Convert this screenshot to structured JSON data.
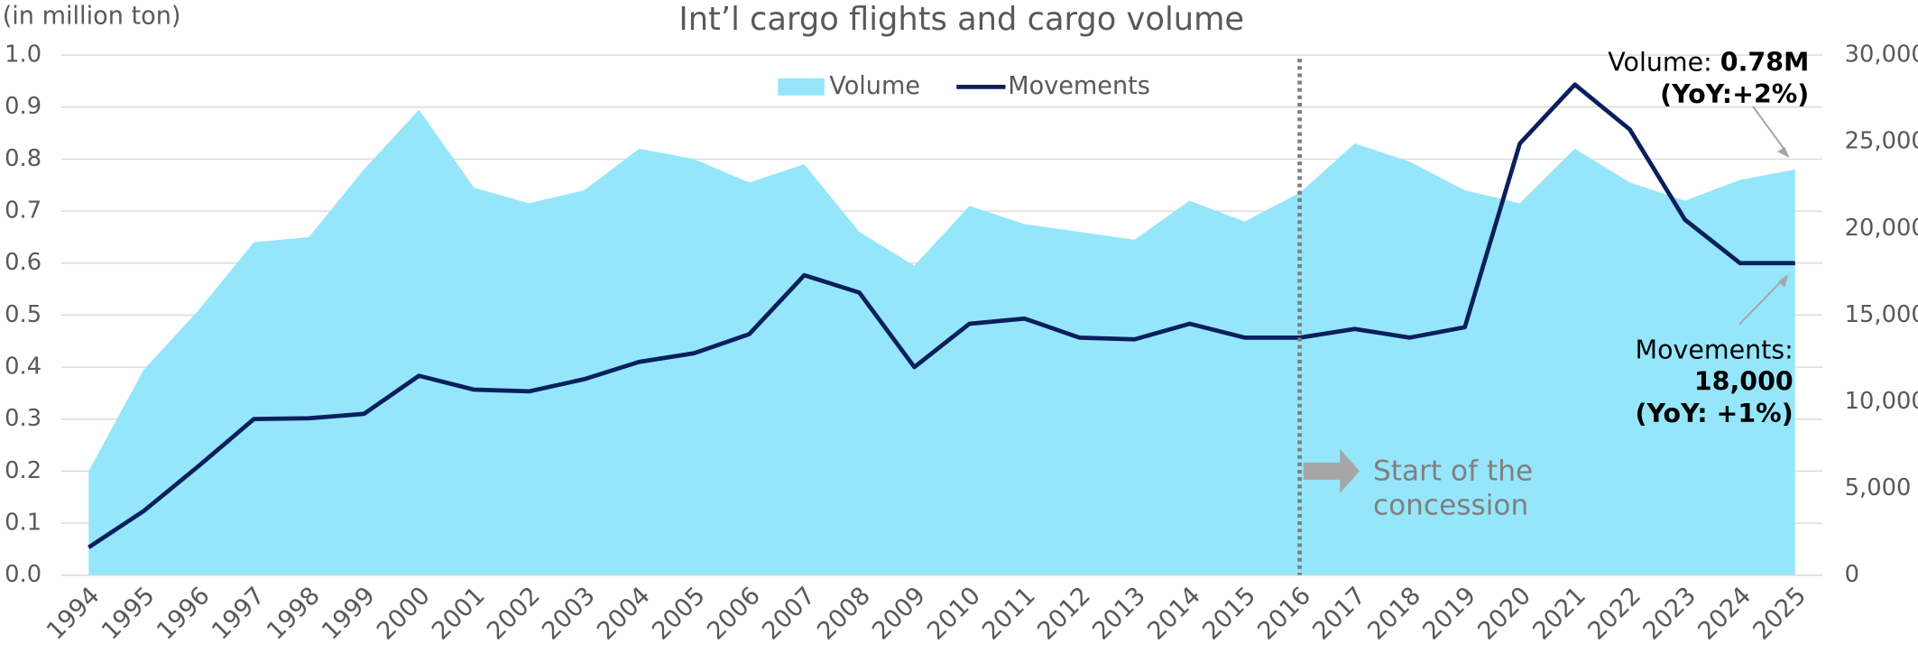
{
  "chart_data": {
    "type": "area-line",
    "title": "Int’l cargo flights and cargo volume",
    "y_label": "(in million ton)",
    "categories": [
      "1994",
      "1995",
      "1996",
      "1997",
      "1998",
      "1999",
      "2000",
      "2001",
      "2002",
      "2003",
      "2004",
      "2005",
      "2006",
      "2007",
      "2008",
      "2009",
      "2010",
      "2011",
      "2012",
      "2013",
      "2014",
      "2015",
      "2016",
      "2017",
      "2018",
      "2019",
      "2020",
      "2021",
      "2022",
      "2023",
      "2024",
      "2025"
    ],
    "series": [
      {
        "name": "Volume",
        "kind": "area",
        "color": "#95e6fb",
        "axis": "y",
        "values": [
          0.2,
          0.395,
          0.51,
          0.64,
          0.65,
          0.78,
          0.895,
          0.745,
          0.715,
          0.74,
          0.82,
          0.8,
          0.755,
          0.79,
          0.66,
          0.595,
          0.71,
          0.675,
          0.66,
          0.645,
          0.72,
          0.68,
          0.735,
          0.83,
          0.795,
          0.74,
          0.715,
          0.82,
          0.755,
          0.72,
          0.76,
          0.78
        ]
      },
      {
        "name": "Movements",
        "kind": "line",
        "color": "#0a1f5c",
        "axis": "y2",
        "values": [
          1600,
          3700,
          6300,
          9000,
          9050,
          9300,
          11500,
          10700,
          10600,
          11300,
          12300,
          12800,
          13900,
          17300,
          16300,
          12000,
          14500,
          14800,
          13700,
          13600,
          14500,
          13700,
          13700,
          14200,
          13700,
          14300,
          24900,
          28300,
          25700,
          20500,
          18000,
          18000
        ]
      }
    ],
    "ylim": [
      0,
      1.0
    ],
    "yticks": [
      {
        "value": 0,
        "label": "0.0"
      },
      0.1,
      0.2,
      0.3,
      0.4,
      0.5,
      0.6,
      0.7,
      0.8,
      0.9,
      {
        "value": 1,
        "label": "1.0"
      }
    ],
    "y2lim": [
      0,
      30000
    ],
    "y2ticks": [
      0,
      {
        "value": 5000,
        "label": "5,000"
      },
      {
        "value": 10000,
        "label": "10,000"
      },
      {
        "value": 15000,
        "label": "15,000"
      },
      {
        "value": 20000,
        "label": "20,000"
      },
      {
        "value": 25000,
        "label": "25,000"
      },
      {
        "value": 30000,
        "label": "30,000"
      }
    ],
    "grid": true,
    "legend": "top",
    "marker_category": "2016",
    "volume_note": {
      "label": "Volume: ",
      "value": "0.78M",
      "yoy": "(YoY:+2%)"
    },
    "movements_note": {
      "label": "Movements:",
      "value": "18,000",
      "yoy": "(YoY: +1%)"
    },
    "concession_note": [
      "Start of the",
      "concession"
    ]
  }
}
